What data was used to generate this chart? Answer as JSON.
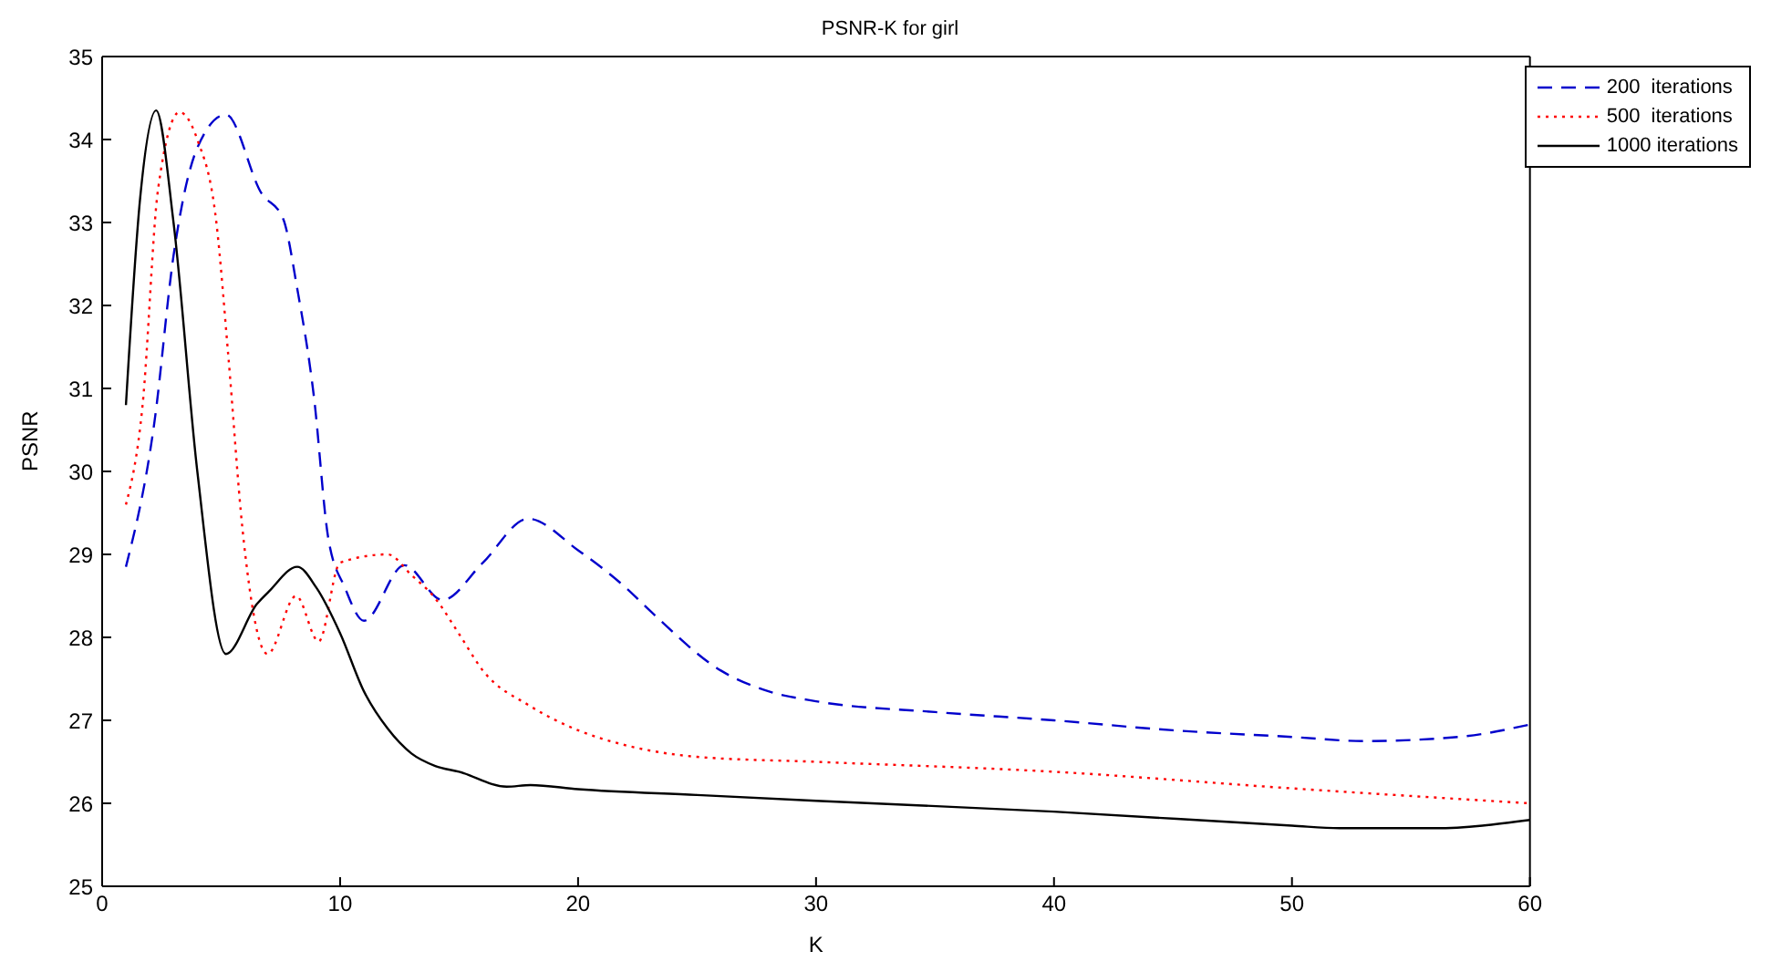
{
  "chart_data": {
    "type": "line",
    "title": "PSNR-K for girl",
    "xlabel": "K",
    "ylabel": "PSNR",
    "xlim": [
      0,
      60
    ],
    "xticks": [
      0,
      10,
      20,
      30,
      40,
      50,
      60
    ],
    "ylim": [
      25,
      35
    ],
    "yticks": [
      25,
      26,
      27,
      28,
      29,
      30,
      31,
      32,
      33,
      34,
      35
    ],
    "legend": "top right",
    "marker": "none",
    "series": [
      {
        "name": "200  iterations",
        "color": "#0000cc",
        "line_style": "dashed",
        "x": [
          1,
          2.2,
          3,
          4,
          5.2,
          6.7,
          7.6,
          8.2,
          8.9,
          9.5,
          10.2,
          11,
          12.7,
          14.3,
          16,
          17.9,
          20,
          22,
          23.1,
          26,
          28,
          30,
          35,
          40,
          45,
          50,
          53,
          57,
          60
        ],
        "values": [
          28.85,
          30.6,
          32.6,
          33.9,
          34.3,
          33.35,
          33.05,
          32.2,
          30.9,
          29.2,
          28.6,
          28.2,
          28.87,
          28.45,
          28.9,
          29.43,
          29.05,
          28.6,
          28.3,
          27.6,
          27.35,
          27.23,
          27.1,
          27.0,
          26.88,
          26.8,
          26.75,
          26.8,
          26.95
        ]
      },
      {
        "name": "500  iterations",
        "color": "#ff0000",
        "line_style": "dotted",
        "x": [
          1,
          1.7,
          2.35,
          3.25,
          4,
          4.8,
          5.3,
          5.9,
          6.95,
          8.15,
          9.1,
          10,
          12,
          13,
          14,
          15,
          16,
          18,
          20,
          22,
          25,
          30,
          40,
          50,
          60
        ],
        "values": [
          29.6,
          30.8,
          33.4,
          34.33,
          34.0,
          33.0,
          31.4,
          29.3,
          27.8,
          28.5,
          27.95,
          28.9,
          29.0,
          28.75,
          28.47,
          28.04,
          27.6,
          27.17,
          26.88,
          26.7,
          26.56,
          26.5,
          26.38,
          26.18,
          26.0
        ]
      },
      {
        "name": "1000 iterations",
        "color": "#000000",
        "line_style": "solid",
        "x": [
          1,
          1.6,
          2.27,
          3,
          4,
          5.2,
          6.5,
          7,
          8.2,
          9,
          10,
          11,
          12,
          13,
          14,
          15,
          17,
          18,
          20,
          25,
          30,
          40,
          50,
          52,
          56,
          60
        ],
        "values": [
          30.8,
          33.3,
          34.35,
          33.0,
          30.0,
          27.8,
          28.4,
          28.55,
          28.85,
          28.6,
          28.05,
          27.35,
          26.9,
          26.6,
          26.45,
          26.38,
          26.2,
          26.22,
          26.17,
          26.1,
          26.03,
          25.9,
          25.73,
          25.7,
          25.7,
          25.8
        ]
      }
    ]
  }
}
